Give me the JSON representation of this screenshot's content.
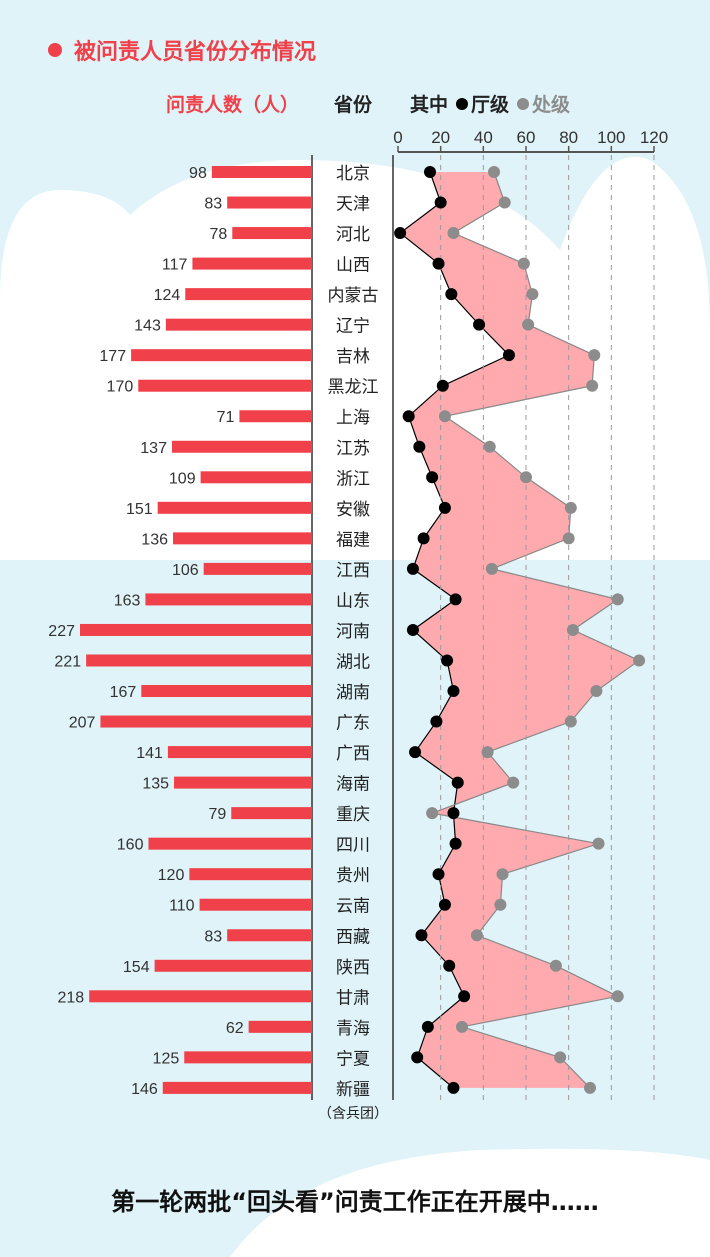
{
  "title": "被问责人员省份分布情况",
  "headers": {
    "count": "问责人数（人）",
    "province": "省份",
    "among": "其中",
    "ting": "厅级",
    "chu": "处级"
  },
  "footer": "第一轮两批“回头看”问责工作正在开展中……",
  "colors": {
    "accent": "#f0414a",
    "ting": "#000000",
    "chu": "#8c8c8c",
    "fill": "#ffaaaf",
    "background": "#dff3f8"
  },
  "chart_data": {
    "type": "bar+line",
    "categories": [
      "北京",
      "天津",
      "河北",
      "山西",
      "内蒙古",
      "辽宁",
      "吉林",
      "黑龙江",
      "上海",
      "江苏",
      "浙江",
      "安徽",
      "福建",
      "江西",
      "山东",
      "河南",
      "湖北",
      "湖南",
      "广东",
      "广西",
      "海南",
      "重庆",
      "四川",
      "贵州",
      "云南",
      "西藏",
      "陕西",
      "甘肃",
      "青海",
      "宁夏",
      "新疆"
    ],
    "category_note": "（含兵团）",
    "total": [
      98,
      83,
      78,
      117,
      124,
      143,
      177,
      170,
      71,
      137,
      109,
      151,
      136,
      106,
      163,
      227,
      221,
      167,
      207,
      141,
      135,
      79,
      160,
      120,
      110,
      83,
      154,
      218,
      62,
      125,
      146
    ],
    "series": [
      {
        "name": "厅级",
        "values": [
          15,
          20,
          1,
          19,
          25,
          38,
          52,
          21,
          5,
          10,
          16,
          22,
          12,
          7,
          27,
          7,
          23,
          26,
          18,
          8,
          28,
          26,
          27,
          19,
          22,
          11,
          24,
          31,
          14,
          9,
          26
        ]
      },
      {
        "name": "处级",
        "values": [
          45,
          50,
          26,
          59,
          63,
          61,
          92,
          91,
          22,
          43,
          60,
          81,
          80,
          44,
          103,
          82,
          113,
          93,
          81,
          42,
          54,
          16,
          94,
          49,
          48,
          37,
          74,
          103,
          30,
          76,
          90
        ]
      }
    ],
    "xticks": [
      0,
      20,
      40,
      60,
      80,
      100,
      120
    ],
    "xlim": [
      0,
      120
    ],
    "grid": true
  }
}
